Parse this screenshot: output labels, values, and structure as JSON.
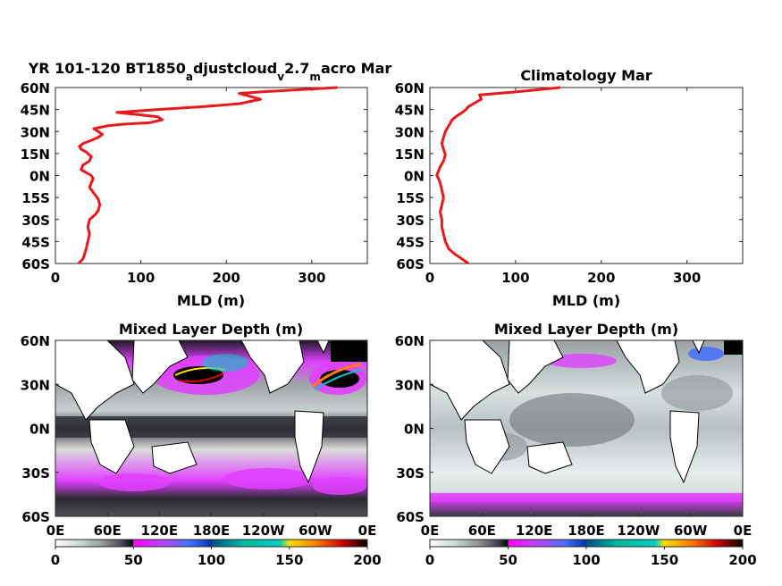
{
  "chart_data": [
    {
      "type": "line",
      "title_parts": [
        "YR 101-120 BT1850",
        "a",
        "djustcloud",
        "v",
        "2.7",
        "m",
        "acro Mar"
      ],
      "xlabel": "MLD (m)",
      "xlim": [
        0,
        365
      ],
      "ylim": [
        -60,
        60
      ],
      "xticks": [
        "0",
        "100",
        "200",
        "300"
      ],
      "yticks": [
        "60N",
        "45N",
        "30N",
        "15N",
        "0N",
        "15S",
        "30S",
        "45S",
        "60S"
      ],
      "series": [
        {
          "color": "#e8191c",
          "x": [
            27,
            32,
            34,
            36,
            38,
            40,
            38,
            40,
            46,
            50,
            52,
            50,
            45,
            40,
            42,
            44,
            42,
            36,
            30,
            32,
            40,
            42,
            36,
            30,
            28,
            33,
            42,
            50,
            55,
            50,
            45,
            62,
            80,
            110,
            125,
            120,
            90,
            72,
            120,
            175,
            215,
            240,
            215,
            240,
            330
          ],
          "y": [
            -60,
            -57,
            -54,
            -50,
            -45,
            -40,
            -35,
            -30,
            -27,
            -24,
            -20,
            -16,
            -12,
            -8,
            -5,
            -2,
            0,
            2,
            4,
            7,
            10,
            13,
            16,
            18,
            20,
            22,
            24,
            26,
            28,
            30,
            32,
            34,
            35,
            36,
            38,
            40,
            42,
            43,
            45,
            47,
            49,
            52,
            56,
            57,
            60
          ]
        }
      ]
    },
    {
      "type": "line",
      "title": "Climatology Mar",
      "xlabel": "MLD (m)",
      "xlim": [
        0,
        365
      ],
      "ylim": [
        -60,
        60
      ],
      "xticks": [
        "0",
        "100",
        "200",
        "300"
      ],
      "yticks": [
        "60N",
        "45N",
        "30N",
        "15N",
        "0N",
        "15S",
        "30S",
        "45S",
        "60S"
      ],
      "series": [
        {
          "color": "#e8191c",
          "x": [
            45,
            38,
            30,
            22,
            18,
            16,
            14,
            14,
            12,
            14,
            16,
            14,
            12,
            10,
            8,
            10,
            12,
            16,
            18,
            16,
            14,
            16,
            18,
            20,
            22,
            24,
            26,
            30,
            35,
            40,
            42,
            45,
            60,
            58,
            100,
            152
          ],
          "y": [
            -60,
            -57,
            -54,
            -50,
            -45,
            -40,
            -35,
            -30,
            -25,
            -20,
            -15,
            -10,
            -5,
            -2,
            0,
            3,
            6,
            10,
            14,
            18,
            22,
            26,
            30,
            32,
            34,
            36,
            38,
            40,
            42,
            44,
            45,
            47,
            52,
            55,
            57,
            60
          ]
        }
      ]
    },
    {
      "type": "heatmap",
      "title": "Mixed Layer Depth (m)",
      "xticks": [
        "0E",
        "60E",
        "120E",
        "180E",
        "120W",
        "60W",
        "0E"
      ],
      "yticks": [
        "60N",
        "30N",
        "0N",
        "30S",
        "60S"
      ],
      "colorbar": {
        "ticks": [
          "0",
          "50",
          "100",
          "150",
          "200"
        ],
        "range": [
          0,
          200
        ]
      }
    },
    {
      "type": "heatmap",
      "title": "Mixed Layer Depth (m)",
      "xticks": [
        "0E",
        "60E",
        "120E",
        "180E",
        "120W",
        "60W",
        "0E"
      ],
      "yticks": [
        "60N",
        "30N",
        "0N",
        "30S",
        "60S"
      ],
      "colorbar": {
        "ticks": [
          "0",
          "50",
          "100",
          "150",
          "200"
        ],
        "range": [
          0,
          200
        ]
      }
    }
  ],
  "colors": {
    "line": "#e8191c",
    "colorbar": [
      "#ffffff",
      "#b9c4c4",
      "#7a7d80",
      "#3a3a40",
      "#000000",
      "#ff00ff",
      "#b060ff",
      "#3c6cff",
      "#0050c0",
      "#00c0a0",
      "#ffe000",
      "#ff6000",
      "#c00000",
      "#000000"
    ],
    "land": "#ffffff",
    "coast": "#000000"
  }
}
